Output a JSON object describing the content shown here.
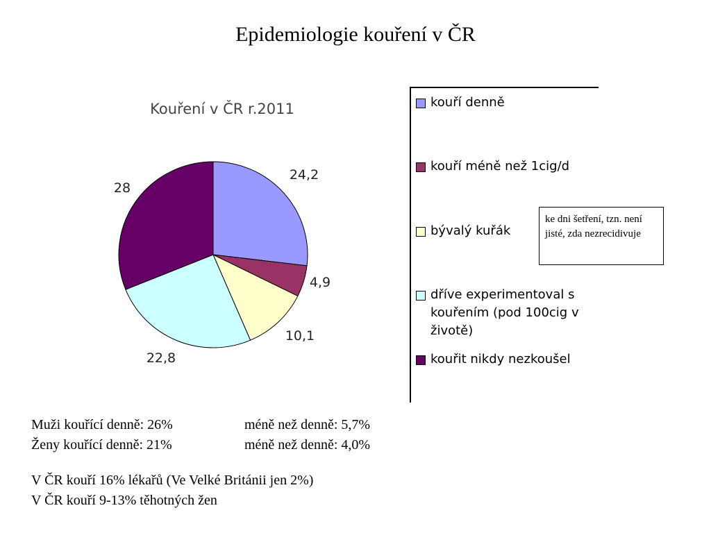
{
  "slide": {
    "title": "Epidemiologie kouření v ČR"
  },
  "chart_data": {
    "type": "pie",
    "title": "Kouření v ČR r.2011",
    "labels": [
      "kouří denně",
      "kouří méně než 1cig/d",
      "bývalý kuřák",
      "dříve experimentoval s kouřením (pod 100cig v životě)",
      "kouřit nikdy nezkoušel"
    ],
    "legend_lines": [
      [
        "kouří denně"
      ],
      [
        "kouří méně než 1cig/d"
      ],
      [
        "bývalý kuřák"
      ],
      [
        "dříve experimentoval s",
        "kouřením (pod 100cig v",
        "životě)"
      ],
      [
        "kouřit nikdy nezkoušel"
      ]
    ],
    "values": [
      24.2,
      4.9,
      10.1,
      22.8,
      28
    ],
    "value_labels": [
      "24,2",
      "4,9",
      "10,1",
      "22,8",
      "28"
    ],
    "colors": [
      "#9999ff",
      "#993366",
      "#ffffcc",
      "#ccffff",
      "#660066"
    ],
    "legend_position": "right"
  },
  "note": "ke dni šetření, tzn. není jisté, zda nezrecidivuje",
  "stats": [
    {
      "left": "Muži kouřící denně: 26%",
      "right": "méně než denně: 5,7%"
    },
    {
      "left": "Ženy kouřící denně: 21%",
      "right": "méně než denně: 4,0%"
    }
  ],
  "facts": [
    "V ČR kouří 16% lékařů (Ve Velké Británii jen 2%)",
    "V ČR kouří 9-13% těhotných žen"
  ]
}
